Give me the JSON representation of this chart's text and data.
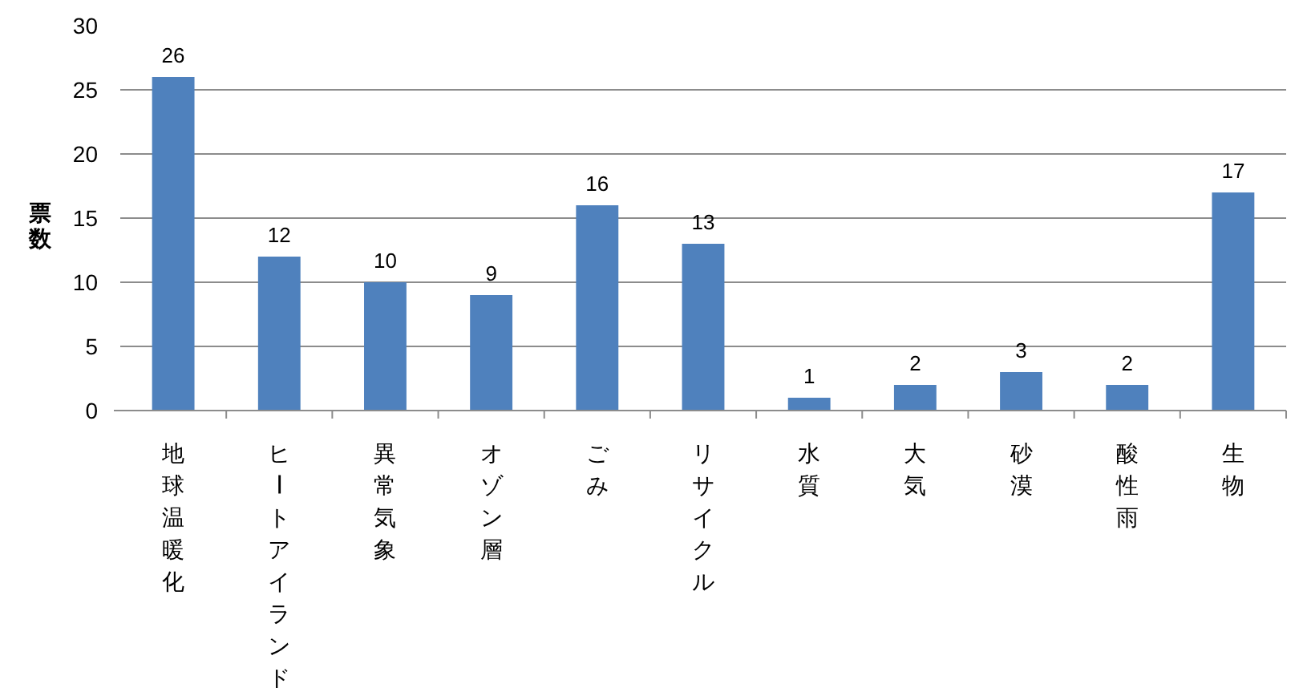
{
  "chart_data": {
    "type": "bar",
    "ylabel": "票数",
    "categories": [
      "地球温暖化",
      "ヒートアイランド",
      "異常気象",
      "オゾン層",
      "ごみ",
      "リサイクル",
      "水質",
      "大気",
      "砂漠",
      "酸性雨",
      "生物"
    ],
    "values": [
      26,
      12,
      10,
      9,
      16,
      13,
      1,
      2,
      3,
      2,
      17
    ],
    "color": "#4f81bd",
    "ylim": [
      0,
      30
    ],
    "yticks": [
      0,
      5,
      10,
      15,
      20,
      25,
      30
    ],
    "grid": "y",
    "data_labels": true
  }
}
